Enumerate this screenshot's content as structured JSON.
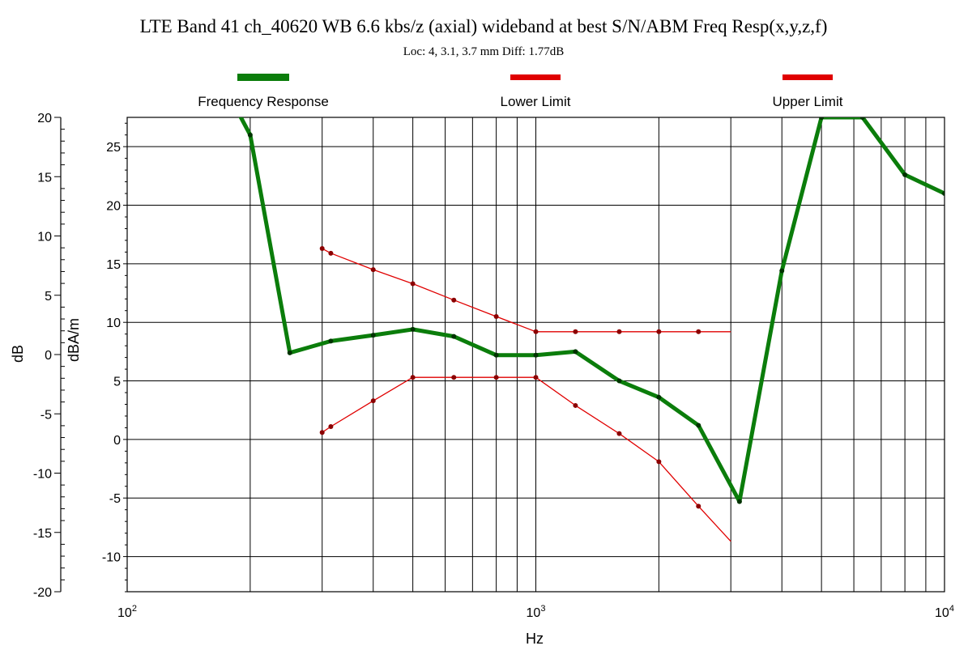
{
  "chart_data": {
    "type": "line",
    "title": "LTE Band 41 ch_40620 WB 6.6 kbs/z (axial) wideband at best S/N/ABM Freq Resp(x,y,z,f)",
    "subtitle": "Loc: 4, 3.1, 3.7 mm Diff: 1.77dB",
    "xlabel": "Hz",
    "x_scale": "log",
    "xlim": [
      100,
      10000
    ],
    "x_ticks": [
      {
        "value": 100,
        "base": "10",
        "exp": "2"
      },
      {
        "value": 1000,
        "base": "10",
        "exp": "3"
      },
      {
        "value": 10000,
        "base": "10",
        "exp": "4"
      }
    ],
    "y_left": {
      "label": "dB",
      "lim": [
        -20,
        20
      ],
      "ticks": [
        "20",
        "15",
        "10",
        "5",
        "0",
        "-5",
        "-10",
        "-15",
        "-20"
      ]
    },
    "y_right": {
      "label": "dBA/m",
      "lim": [
        -13,
        27.5
      ],
      "ticks": [
        "25",
        "20",
        "15",
        "10",
        "5",
        "0",
        "-5",
        "-10"
      ]
    },
    "grid": true,
    "legend_position": "top",
    "series": [
      {
        "name": "Frequency Response",
        "color": "#0b7d0b",
        "axis": "dBA/m",
        "points": [
          [
            180,
            29.0
          ],
          [
            200,
            26.0
          ],
          [
            250,
            7.4
          ],
          [
            315,
            8.4
          ],
          [
            400,
            8.9
          ],
          [
            500,
            9.4
          ],
          [
            630,
            8.8
          ],
          [
            800,
            7.2
          ],
          [
            1000,
            7.2
          ],
          [
            1250,
            7.5
          ],
          [
            1600,
            5.0
          ],
          [
            2000,
            3.6
          ],
          [
            2500,
            1.2
          ],
          [
            3150,
            -5.3
          ],
          [
            4000,
            14.4
          ],
          [
            5000,
            27.5
          ],
          [
            6300,
            27.5
          ],
          [
            8000,
            22.6
          ],
          [
            10000,
            21.0
          ]
        ]
      },
      {
        "name": "Lower Limit",
        "color": "#e00000",
        "axis": "dBA/m",
        "points": [
          [
            300,
            0.6
          ],
          [
            315,
            1.1
          ],
          [
            400,
            3.3
          ],
          [
            500,
            5.3
          ],
          [
            630,
            5.3
          ],
          [
            800,
            5.3
          ],
          [
            1000,
            5.3
          ],
          [
            1250,
            2.9
          ],
          [
            1600,
            0.5
          ],
          [
            2000,
            -1.9
          ],
          [
            2500,
            -5.7
          ],
          [
            3000,
            -8.7
          ]
        ]
      },
      {
        "name": "Upper Limit",
        "color": "#e00000",
        "axis": "dBA/m",
        "points": [
          [
            300,
            16.3
          ],
          [
            315,
            15.9
          ],
          [
            400,
            14.5
          ],
          [
            500,
            13.3
          ],
          [
            630,
            11.9
          ],
          [
            800,
            10.5
          ],
          [
            1000,
            9.2
          ],
          [
            1250,
            9.2
          ],
          [
            1600,
            9.2
          ],
          [
            2000,
            9.2
          ],
          [
            2500,
            9.2
          ],
          [
            3000,
            9.2
          ]
        ]
      }
    ]
  }
}
